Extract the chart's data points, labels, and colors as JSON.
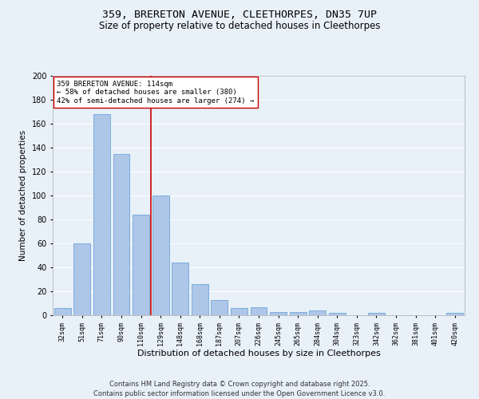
{
  "title_line1": "359, BRERETON AVENUE, CLEETHORPES, DN35 7UP",
  "title_line2": "Size of property relative to detached houses in Cleethorpes",
  "xlabel": "Distribution of detached houses by size in Cleethorpes",
  "ylabel": "Number of detached properties",
  "categories": [
    "32sqm",
    "51sqm",
    "71sqm",
    "90sqm",
    "110sqm",
    "129sqm",
    "148sqm",
    "168sqm",
    "187sqm",
    "207sqm",
    "226sqm",
    "245sqm",
    "265sqm",
    "284sqm",
    "304sqm",
    "323sqm",
    "342sqm",
    "362sqm",
    "381sqm",
    "401sqm",
    "420sqm"
  ],
  "values": [
    6,
    60,
    168,
    135,
    84,
    100,
    44,
    26,
    13,
    6,
    7,
    3,
    3,
    4,
    2,
    0,
    2,
    0,
    0,
    0,
    2
  ],
  "bar_color": "#aec6e8",
  "bar_edge_color": "#5b9bd5",
  "vline_x": 4.5,
  "vline_color": "#cc0000",
  "annotation_text": "359 BRERETON AVENUE: 114sqm\n← 58% of detached houses are smaller (380)\n42% of semi-detached houses are larger (274) →",
  "annotation_box_color": "#ffffff",
  "annotation_box_edge_color": "#cc0000",
  "ylim": [
    0,
    200
  ],
  "yticks": [
    0,
    20,
    40,
    60,
    80,
    100,
    120,
    140,
    160,
    180,
    200
  ],
  "background_color": "#e8f0f8",
  "plot_bg_color": "#e8f0f8",
  "grid_color": "#ffffff",
  "footer_line1": "Contains HM Land Registry data © Crown copyright and database right 2025.",
  "footer_line2": "Contains public sector information licensed under the Open Government Licence v3.0.",
  "title_fontsize": 9.5,
  "subtitle_fontsize": 8.5,
  "annotation_fontsize": 6.5,
  "footer_fontsize": 6,
  "ylabel_fontsize": 7.5,
  "xlabel_fontsize": 8,
  "ytick_fontsize": 7,
  "xtick_fontsize": 6
}
